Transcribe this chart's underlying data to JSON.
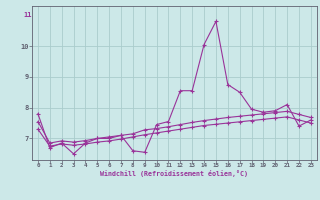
{
  "xlabel": "Windchill (Refroidissement éolien,°C)",
  "background_color": "#cce8e8",
  "grid_color": "#aacccc",
  "line_color": "#993399",
  "x": [
    0,
    1,
    2,
    3,
    4,
    5,
    6,
    7,
    8,
    9,
    10,
    11,
    12,
    13,
    14,
    15,
    16,
    17,
    18,
    19,
    20,
    21,
    22,
    23
  ],
  "line1": [
    7.8,
    6.7,
    6.85,
    6.5,
    6.85,
    7.0,
    7.0,
    7.1,
    6.6,
    6.55,
    7.45,
    7.55,
    8.55,
    8.55,
    10.05,
    10.8,
    8.75,
    8.5,
    7.95,
    7.85,
    7.9,
    8.1,
    7.4,
    7.6
  ],
  "line2": [
    7.55,
    6.85,
    6.92,
    6.88,
    6.93,
    7.0,
    7.05,
    7.1,
    7.15,
    7.28,
    7.32,
    7.38,
    7.45,
    7.52,
    7.58,
    7.63,
    7.68,
    7.72,
    7.76,
    7.8,
    7.84,
    7.88,
    7.78,
    7.68
  ],
  "line3": [
    7.3,
    6.75,
    6.82,
    6.78,
    6.82,
    6.88,
    6.92,
    6.98,
    7.05,
    7.12,
    7.18,
    7.24,
    7.3,
    7.36,
    7.42,
    7.46,
    7.5,
    7.54,
    7.58,
    7.62,
    7.66,
    7.7,
    7.6,
    7.5
  ],
  "ylim": [
    6.3,
    11.3
  ],
  "yticks": [
    7,
    8,
    9,
    10
  ],
  "xticks": [
    0,
    1,
    2,
    3,
    4,
    5,
    6,
    7,
    8,
    9,
    10,
    11,
    12,
    13,
    14,
    15,
    16,
    17,
    18,
    19,
    20,
    21,
    22,
    23
  ]
}
